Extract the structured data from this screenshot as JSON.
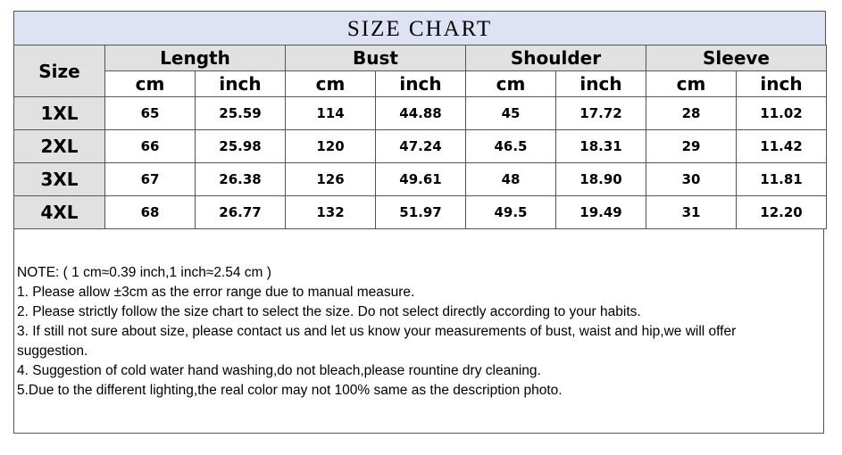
{
  "title": "SIZE CHART",
  "table": {
    "size_header": "Size",
    "groups": [
      "Length",
      "Bust",
      "Shoulder",
      "Sleeve"
    ],
    "units": [
      "cm",
      "inch",
      "cm",
      "inch",
      "cm",
      "inch",
      "cm",
      "inch"
    ],
    "rows": [
      [
        "1XL",
        "65",
        "25.59",
        "114",
        "44.88",
        "45",
        "17.72",
        "28",
        "11.02"
      ],
      [
        "2XL",
        "66",
        "25.98",
        "120",
        "47.24",
        "46.5",
        "18.31",
        "29",
        "11.42"
      ],
      [
        "3XL",
        "67",
        "26.38",
        "126",
        "49.61",
        "48",
        "18.90",
        "30",
        "11.81"
      ],
      [
        "4XL",
        "68",
        "26.77",
        "132",
        "51.97",
        "49.5",
        "19.49",
        "31",
        "12.20"
      ]
    ]
  },
  "notes": [
    "NOTE: ( 1 cm≈0.39 inch,1 inch≈2.54 cm )",
    "1. Please allow ±3cm as the error range due to manual measure.",
    "2. Please strictly follow the size chart to select the size. Do not select directly according to your habits.",
    "3. If still not sure about size, please contact us and let us know your measurements of bust, waist and hip,we will offer suggestion.",
    "4. Suggestion of cold water hand washing,do not bleach,please rountine dry cleaning.",
    "5.Due to the different lighting,the real color may not 100% same as the description photo."
  ]
}
